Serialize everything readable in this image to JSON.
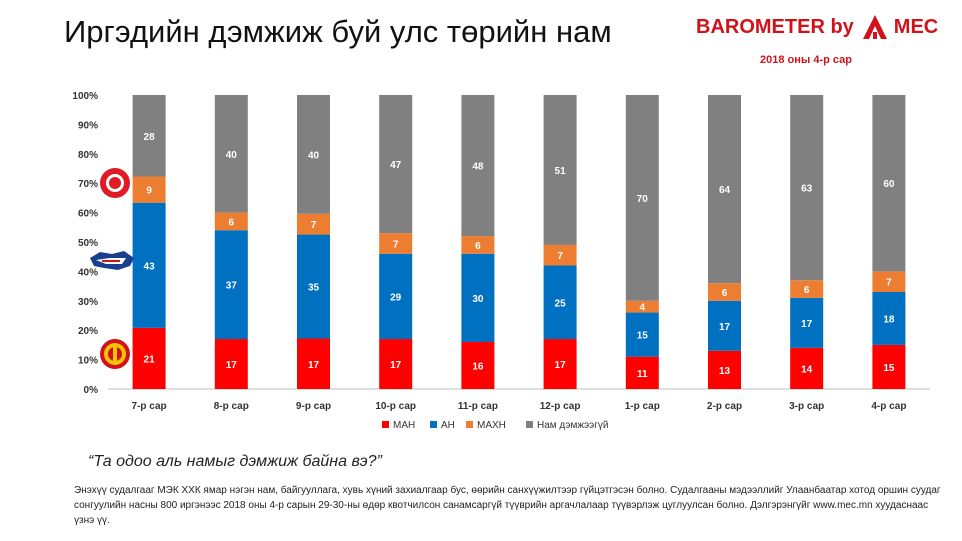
{
  "header": {
    "title": "Иргэдийн дэмжиж буй улс төрийн нам",
    "brand": "BAROMETER by",
    "brand_suffix": "MEC",
    "subtitle": "2018 оны 4-р сар"
  },
  "question": "“Та одоо аль намыг дэмжиж байна вэ?”",
  "footnote": "Энэхүү судалгааг МЭК ХХК ямар нэгэн нам, байгууллага, хувь хүний захиалгаар бус, өөрийн санхүүжилтээр гүйцэтгэсэн болно. Судалгааны мэдээллийг Улаанбаатар хотод оршин суудаг сонгуулийн насны 800 иргэнээс 2018 оны 4-р сарын 29-30-ны өдөр квотчилсон санамсаргүй түүврийн аргачлалаар түүвэрлэж цуглуулсан болно. Дэлгэрэнгүйг www.mec.mn хуудаснаас үзнэ үү.",
  "colors": {
    "accent": "#d0121b"
  },
  "icons": [
    "man-party-emblem-icon",
    "an-party-emblem-icon",
    "mahn-party-emblem-icon",
    "mec-logo-icon"
  ],
  "chart_data": {
    "type": "bar",
    "stacked": "percent",
    "categories": [
      "7-р сар",
      "8-р сар",
      "9-р сар",
      "10-р сар",
      "11-р сар",
      "12-р сар",
      "1-р сар",
      "2-р сар",
      "3-р сар",
      "4-р сар"
    ],
    "series": [
      {
        "name": "МАН",
        "color": "#ff0000",
        "values": [
          21,
          17,
          17,
          17,
          16,
          17,
          11,
          13,
          14,
          15
        ]
      },
      {
        "name": "АН",
        "color": "#0070c0",
        "values": [
          43,
          37,
          35,
          29,
          30,
          25,
          15,
          17,
          17,
          18
        ]
      },
      {
        "name": "МАХН",
        "color": "#ed7d31",
        "values": [
          9,
          6,
          7,
          7,
          6,
          7,
          4,
          6,
          6,
          7
        ]
      },
      {
        "name": "Нам дэмжээгүй",
        "color": "#808080",
        "values": [
          28,
          40,
          40,
          47,
          48,
          51,
          70,
          64,
          63,
          60
        ]
      }
    ],
    "yticks": [
      "0%",
      "10%",
      "20%",
      "30%",
      "40%",
      "50%",
      "60%",
      "70%",
      "80%",
      "90%",
      "100%"
    ],
    "ylim": [
      0,
      100
    ],
    "grid": false,
    "legend": "bottom"
  }
}
